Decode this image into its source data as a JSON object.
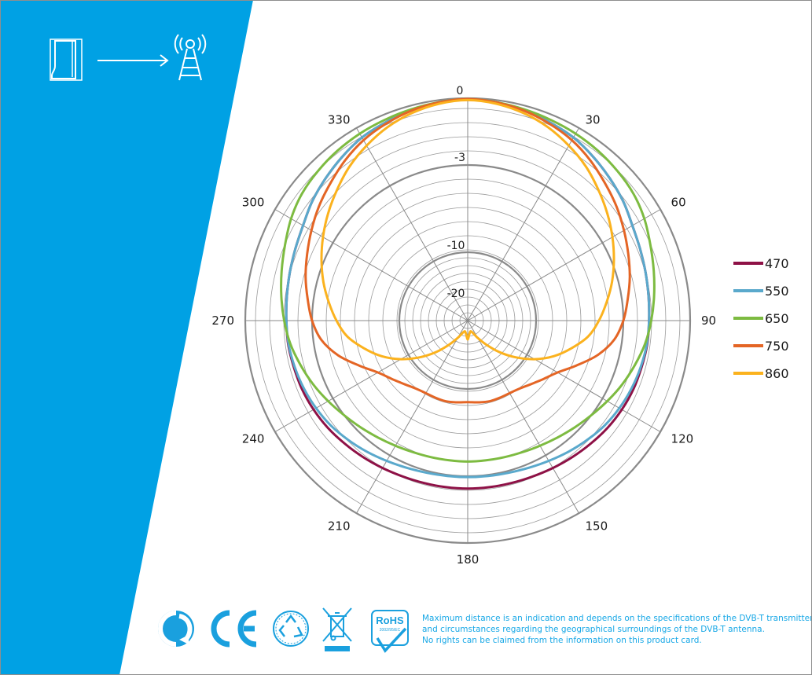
{
  "colors": {
    "band": "#00a1e4",
    "accent_text": "#16a7e6"
  },
  "header_icons": [
    {
      "name": "door-icon"
    },
    {
      "name": "arrow-right-icon"
    },
    {
      "name": "transmitter-tower-icon"
    }
  ],
  "chart_data": {
    "type": "polar-line",
    "title": "",
    "radial_ticks": [
      "0",
      "-3",
      "-10",
      "-20"
    ],
    "angle_ticks": [
      0,
      30,
      60,
      90,
      120,
      150,
      180,
      210,
      240,
      270,
      300,
      330
    ],
    "angle_labels": [
      "0",
      "30",
      "60",
      "90",
      "120",
      "150",
      "180",
      "210",
      "240",
      "270",
      "300",
      "330"
    ],
    "grid": true,
    "legend_position": "right",
    "series": [
      {
        "name": "470",
        "color": "#8e1146",
        "radius": [
          1.0,
          0.993,
          0.983,
          0.968,
          0.954,
          0.931,
          0.907,
          0.884,
          0.858,
          0.842,
          0.831,
          0.823,
          0.818,
          0.817,
          0.812,
          0.809,
          0.803,
          0.795,
          0.785,
          0.776,
          0.768,
          0.762,
          0.759,
          0.758,
          0.758,
          0.758,
          0.759,
          0.762,
          0.768,
          0.776,
          0.785,
          0.795,
          0.803,
          0.809,
          0.812,
          0.817,
          0.818,
          0.823,
          0.831,
          0.842,
          0.858,
          0.884,
          0.907,
          0.931,
          0.954,
          0.968,
          0.983,
          0.993
        ]
      },
      {
        "name": "550",
        "color": "#5aa9cc",
        "radius": [
          1.0,
          0.993,
          0.983,
          0.968,
          0.954,
          0.931,
          0.907,
          0.884,
          0.858,
          0.842,
          0.831,
          0.823,
          0.818,
          0.815,
          0.808,
          0.8,
          0.79,
          0.778,
          0.762,
          0.746,
          0.731,
          0.719,
          0.711,
          0.707,
          0.706,
          0.707,
          0.711,
          0.719,
          0.731,
          0.746,
          0.762,
          0.778,
          0.79,
          0.8,
          0.808,
          0.815,
          0.818,
          0.823,
          0.831,
          0.842,
          0.858,
          0.884,
          0.907,
          0.931,
          0.954,
          0.968,
          0.983,
          0.993
        ]
      },
      {
        "name": "650",
        "color": "#7dbb41",
        "radius": [
          1.0,
          0.994,
          0.987,
          0.98,
          0.974,
          0.966,
          0.955,
          0.942,
          0.92,
          0.892,
          0.869,
          0.848,
          0.828,
          0.807,
          0.78,
          0.754,
          0.727,
          0.702,
          0.682,
          0.665,
          0.652,
          0.643,
          0.638,
          0.636,
          0.636,
          0.636,
          0.638,
          0.643,
          0.652,
          0.665,
          0.682,
          0.702,
          0.727,
          0.754,
          0.78,
          0.807,
          0.828,
          0.848,
          0.869,
          0.892,
          0.92,
          0.942,
          0.955,
          0.966,
          0.974,
          0.98,
          0.987,
          0.994
        ]
      },
      {
        "name": "750",
        "color": "#e46525",
        "radius": [
          1.0,
          0.993,
          0.981,
          0.962,
          0.94,
          0.91,
          0.876,
          0.846,
          0.814,
          0.784,
          0.757,
          0.728,
          0.702,
          0.666,
          0.605,
          0.53,
          0.468,
          0.432,
          0.405,
          0.386,
          0.378,
          0.377,
          0.377,
          0.372,
          0.368,
          0.372,
          0.377,
          0.377,
          0.378,
          0.386,
          0.405,
          0.432,
          0.468,
          0.53,
          0.605,
          0.666,
          0.702,
          0.728,
          0.757,
          0.784,
          0.814,
          0.846,
          0.876,
          0.91,
          0.94,
          0.962,
          0.981,
          0.993
        ]
      },
      {
        "name": "860",
        "color": "#fbb21e",
        "radius": [
          0.995,
          0.987,
          0.97,
          0.945,
          0.912,
          0.876,
          0.834,
          0.794,
          0.754,
          0.714,
          0.674,
          0.632,
          0.592,
          0.548,
          0.484,
          0.42,
          0.348,
          0.272,
          0.2,
          0.136,
          0.09,
          0.06,
          0.05,
          0.06,
          0.085,
          0.06,
          0.05,
          0.06,
          0.09,
          0.136,
          0.2,
          0.272,
          0.348,
          0.42,
          0.484,
          0.548,
          0.592,
          0.632,
          0.674,
          0.714,
          0.754,
          0.794,
          0.834,
          0.876,
          0.912,
          0.945,
          0.97,
          0.987
        ]
      }
    ]
  },
  "footer": {
    "icons": [
      {
        "name": "green-dot-recycling-icon"
      },
      {
        "name": "ce-mark-icon"
      },
      {
        "name": "recycle-icon"
      },
      {
        "name": "weee-crossed-bin-icon"
      },
      {
        "name": "rohs-compliant-icon",
        "label": "RoHS",
        "sublabel": "2002/95/EC"
      }
    ],
    "disclaimer": [
      "Maximum distance is an indication and depends on the specifications of the DVB-T transmitter",
      "and circumstances regarding the geographical surroundings of the DVB-T antenna.",
      "No rights can be claimed from the information on this product card."
    ]
  }
}
